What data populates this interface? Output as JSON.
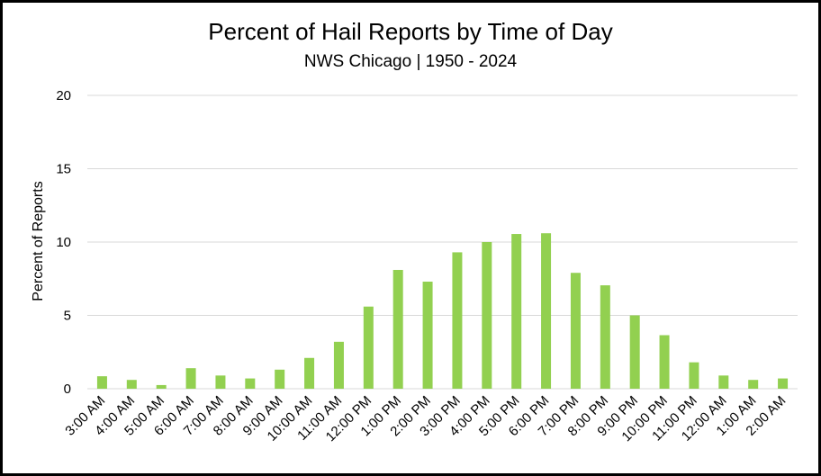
{
  "chart_data": {
    "type": "bar",
    "title": "Percent of Hail Reports by Time of Day",
    "subtitle": "NWS Chicago | 1950 - 2024",
    "xlabel": "",
    "ylabel": "Percent of Reports",
    "ylim": [
      0,
      20
    ],
    "yticks": [
      "0",
      "5",
      "10",
      "15",
      "20"
    ],
    "grid": true,
    "bar_color": "#92d050",
    "categories": [
      "3:00 AM",
      "4:00 AM",
      "5:00 AM",
      "6:00 AM",
      "7:00 AM",
      "8:00 AM",
      "9:00 AM",
      "10:00 AM",
      "11:00 AM",
      "12:00 PM",
      "1:00 PM",
      "2:00 PM",
      "3:00 PM",
      "4:00 PM",
      "5:00 PM",
      "6:00 PM",
      "7:00 PM",
      "8:00 PM",
      "9:00 PM",
      "10:00 PM",
      "11:00 PM",
      "12:00 AM",
      "1:00 AM",
      "2:00 AM"
    ],
    "values": [
      0.85,
      0.6,
      0.25,
      1.4,
      0.9,
      0.7,
      1.3,
      2.1,
      3.2,
      5.6,
      8.1,
      7.3,
      9.3,
      10.0,
      10.55,
      10.6,
      7.9,
      7.05,
      5.0,
      3.65,
      1.8,
      0.9,
      0.6,
      0.7
    ]
  }
}
